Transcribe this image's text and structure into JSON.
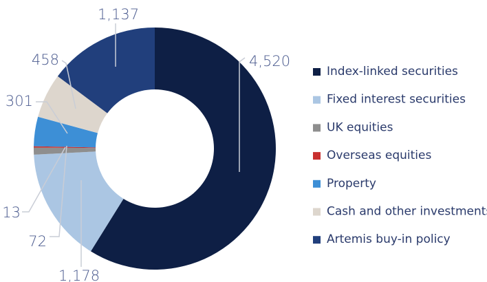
{
  "chart_data": {
    "type": "pie",
    "categories": [
      "Index-linked securities",
      "Fixed interest securities",
      "UK equities",
      "Overseas equities",
      "Property",
      "Cash and other investments",
      "Artemis buy-in policy"
    ],
    "values": [
      4520,
      1178,
      72,
      13,
      301,
      458,
      1137
    ],
    "value_labels": [
      "4,520",
      "1,178",
      "72",
      "13",
      "301",
      "458",
      "1,137"
    ],
    "colors": [
      "#0e1f45",
      "#abc6e3",
      "#8e8e8e",
      "#c8302f",
      "#3d8fd6",
      "#ddd6cd",
      "#213f7c"
    ],
    "legend": "right"
  }
}
